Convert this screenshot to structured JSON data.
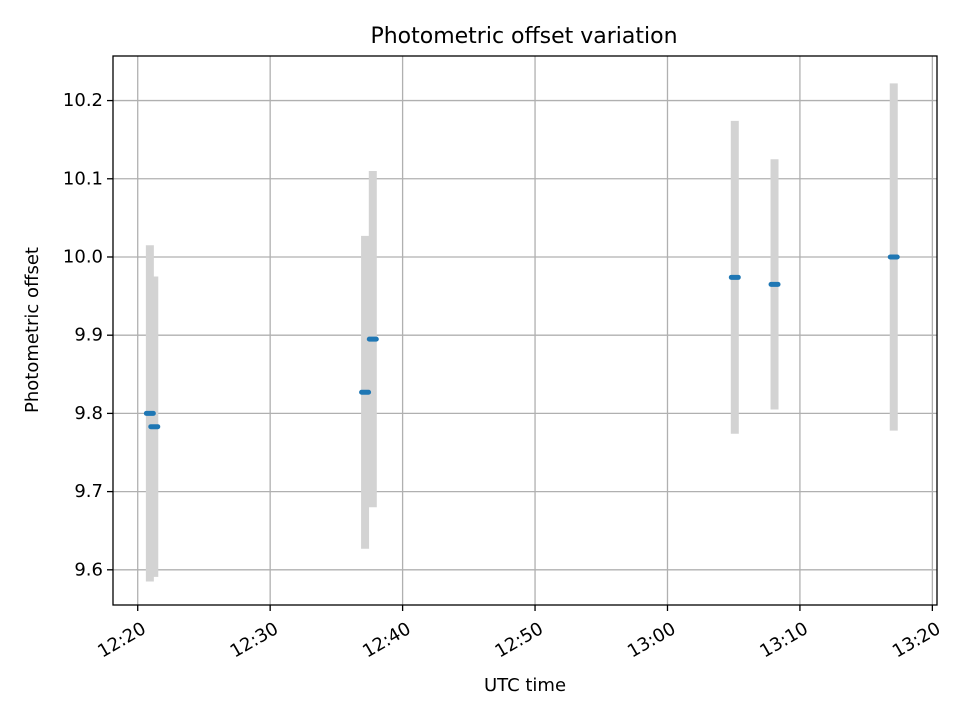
{
  "chart_data": {
    "type": "scatter",
    "title": "Photometric offset variation",
    "xlabel": "UTC time",
    "ylabel": "Photometric offset",
    "x_tick_labels": [
      "12:20",
      "12:30",
      "12:40",
      "12:50",
      "13:00",
      "13:10",
      "13:20"
    ],
    "y_tick_labels": [
      "9.6",
      "9.7",
      "9.8",
      "9.9",
      "10.0",
      "10.1",
      "10.2"
    ],
    "x_ticks": [
      "12:20",
      "12:30",
      "12:40",
      "12:50",
      "13:00",
      "13:10",
      "13:20"
    ],
    "y_ticks": [
      9.6,
      9.7,
      9.8,
      9.9,
      10.0,
      10.1,
      10.2
    ],
    "xlim": [
      "12:18:08",
      "13:20:21"
    ],
    "ylim": [
      9.555,
      10.257
    ],
    "grid": true,
    "series": [
      {
        "x": [
          "12:20:55",
          "12:21:15",
          "12:37:10",
          "12:37:45",
          "13:05:05",
          "13:08:05",
          "13:17:05"
        ],
        "y": [
          9.8,
          9.783,
          9.827,
          9.895,
          9.974,
          9.965,
          10.0
        ],
        "errors": [
          0.215,
          0.192,
          0.2,
          0.215,
          0.2,
          0.16,
          0.222
        ]
      }
    ],
    "colors": {
      "point": "#1f77b4",
      "errorbar": "#d3d3d3",
      "grid": "#b0b0b0",
      "axis": "#000000"
    }
  }
}
